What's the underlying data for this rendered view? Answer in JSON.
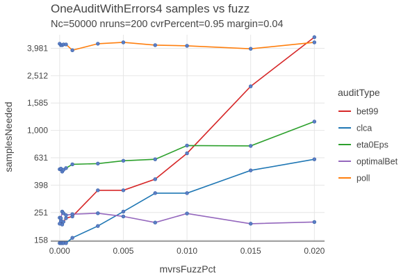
{
  "chart_data": {
    "type": "line",
    "title": "OneAuditWithErrors4 samples vs fuzz",
    "subtitle": "Nc=50000 nruns=200 cvrPercent=0.95 margin=0.04",
    "xlabel": "mvrsFuzzPct",
    "ylabel": "samplesNeeded",
    "y_scale": "log",
    "xlim": [
      -0.0007,
      0.0208
    ],
    "ylim": [
      155,
      5000
    ],
    "x_ticks": [
      0.0,
      0.005,
      0.01,
      0.015,
      0.02
    ],
    "x_tick_labels": [
      "0.000",
      "0.005",
      "0.010",
      "0.015",
      "0.020"
    ],
    "y_ticks": [
      158,
      251,
      398,
      631,
      1000,
      1585,
      2512,
      3981
    ],
    "y_tick_labels": [
      "158",
      "251",
      "398",
      "631",
      "1,000",
      "1,585",
      "2,512",
      "3,981"
    ],
    "grid": true,
    "legend_title": "auditType",
    "legend_position": "right",
    "series": [
      {
        "name": "bet99",
        "color": "#d62728",
        "x": [
          0.0,
          0.0001,
          0.0002,
          0.0003,
          0.0005,
          0.001,
          0.003,
          0.005,
          0.0075,
          0.01,
          0.015,
          0.02
        ],
        "y": [
          230,
          218,
          205,
          215,
          228,
          235,
          365,
          365,
          440,
          680,
          2100,
          4800
        ]
      },
      {
        "name": "clca",
        "color": "#1f77b4",
        "x": [
          0.0,
          0.0001,
          0.0002,
          0.0003,
          0.0005,
          0.001,
          0.003,
          0.005,
          0.0075,
          0.01,
          0.015,
          0.02
        ],
        "y": [
          150,
          150,
          150,
          150,
          150,
          164,
          200,
          255,
          348,
          348,
          510,
          615
        ]
      },
      {
        "name": "eta0Eps",
        "color": "#2ca02c",
        "x": [
          0.0,
          0.0001,
          0.0002,
          0.0003,
          0.0005,
          0.001,
          0.003,
          0.005,
          0.0075,
          0.01,
          0.015,
          0.02
        ],
        "y": [
          520,
          525,
          500,
          515,
          530,
          565,
          572,
          600,
          615,
          775,
          770,
          1160
        ]
      },
      {
        "name": "optimalBet",
        "color": "#9467bd",
        "x": [
          0.0,
          0.0001,
          0.0002,
          0.0003,
          0.0005,
          0.001,
          0.003,
          0.005,
          0.0075,
          0.01,
          0.015,
          0.02
        ],
        "y": [
          208,
          228,
          255,
          248,
          240,
          244,
          248,
          235,
          212,
          247,
          208,
          214
        ]
      },
      {
        "name": "poll",
        "color": "#ff7f0e",
        "x": [
          0.0,
          0.0001,
          0.0002,
          0.0003,
          0.0005,
          0.001,
          0.003,
          0.005,
          0.0075,
          0.01,
          0.015,
          0.02
        ],
        "y": [
          4300,
          4200,
          4200,
          4250,
          4250,
          3850,
          4300,
          4400,
          4200,
          4150,
          3950,
          4400
        ]
      }
    ]
  }
}
